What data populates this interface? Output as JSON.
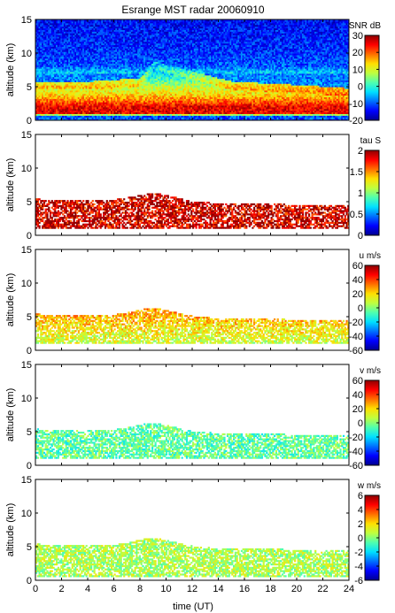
{
  "figure": {
    "title": "Esrange MST radar 20060910",
    "xlabel": "time (UT)"
  },
  "colormap": [
    "#00008f",
    "#0000ff",
    "#006fff",
    "#00dfff",
    "#4fffaf",
    "#bfff3f",
    "#ffdf00",
    "#ff6f00",
    "#ff0000",
    "#8f0000"
  ],
  "chart_data": [
    {
      "type": "heatmap",
      "variable": "SNR",
      "colorbar_label": "SNR dB",
      "ylabel": "altitude (km)",
      "xlim": [
        0,
        24
      ],
      "ylim": [
        0,
        15
      ],
      "x_ticks": [
        0,
        2,
        4,
        6,
        8,
        10,
        12,
        14,
        16,
        18,
        20,
        22,
        24
      ],
      "y_ticks": [
        0,
        5,
        10,
        15
      ],
      "clim": [
        -20,
        30
      ],
      "colorbar_ticks": [
        -20,
        -10,
        0,
        10,
        20,
        30
      ],
      "profile": {
        "altitude_km": [
          0.5,
          1,
          2,
          3,
          4,
          5,
          6,
          8,
          10,
          12,
          14
        ],
        "typical_value": [
          -10,
          25,
          25,
          18,
          12,
          8,
          2,
          -10,
          -12,
          -13,
          -14
        ]
      },
      "structure_top_km": {
        "time_ut": [
          0,
          4,
          8,
          9,
          12,
          15,
          20,
          24
        ],
        "altitude_km": [
          4.5,
          4.5,
          5.0,
          7.5,
          6.0,
          4.5,
          4.0,
          3.5
        ]
      }
    },
    {
      "type": "heatmap",
      "variable": "tau",
      "colorbar_label": "tau S",
      "ylabel": "altitude (km)",
      "xlim": [
        0,
        24
      ],
      "ylim": [
        0,
        15
      ],
      "x_ticks": [
        0,
        2,
        4,
        6,
        8,
        10,
        12,
        14,
        16,
        18,
        20,
        22,
        24
      ],
      "y_ticks": [
        0,
        5,
        10,
        15
      ],
      "clim": [
        0,
        2
      ],
      "colorbar_ticks": [
        0,
        0.5,
        1,
        1.5,
        2
      ],
      "data_altitude_range_km": [
        1,
        6.5
      ],
      "typical_value": 1.9
    },
    {
      "type": "heatmap",
      "variable": "u",
      "colorbar_label": "u m/s",
      "ylabel": "altitude (km)",
      "xlim": [
        0,
        24
      ],
      "ylim": [
        0,
        15
      ],
      "x_ticks": [
        0,
        2,
        4,
        6,
        8,
        10,
        12,
        14,
        16,
        18,
        20,
        22,
        24
      ],
      "y_ticks": [
        0,
        5,
        10,
        15
      ],
      "clim": [
        -60,
        60
      ],
      "colorbar_ticks": [
        -60,
        -40,
        -20,
        0,
        20,
        40,
        60
      ],
      "data_altitude_range_km": [
        1,
        6.5
      ],
      "typical_value": 15
    },
    {
      "type": "heatmap",
      "variable": "v",
      "colorbar_label": "v m/s",
      "ylabel": "altitude (km)",
      "xlim": [
        0,
        24
      ],
      "ylim": [
        0,
        15
      ],
      "x_ticks": [
        0,
        2,
        4,
        6,
        8,
        10,
        12,
        14,
        16,
        18,
        20,
        22,
        24
      ],
      "y_ticks": [
        0,
        5,
        10,
        15
      ],
      "clim": [
        -60,
        60
      ],
      "colorbar_ticks": [
        -60,
        -40,
        -20,
        0,
        20,
        40,
        60
      ],
      "data_altitude_range_km": [
        1,
        6.5
      ],
      "typical_value": -5
    },
    {
      "type": "heatmap",
      "variable": "w",
      "colorbar_label": "w m/s",
      "ylabel": "altitude (km)",
      "xlim": [
        0,
        24
      ],
      "ylim": [
        0,
        15
      ],
      "x_ticks": [
        0,
        2,
        4,
        6,
        8,
        10,
        12,
        14,
        16,
        18,
        20,
        22,
        24
      ],
      "y_ticks": [
        0,
        5,
        10,
        15
      ],
      "clim": [
        -6,
        6
      ],
      "colorbar_ticks": [
        -6,
        -4,
        -2,
        0,
        2,
        4,
        6
      ],
      "data_altitude_range_km": [
        0.5,
        6.5
      ],
      "typical_value": 0.5
    }
  ]
}
